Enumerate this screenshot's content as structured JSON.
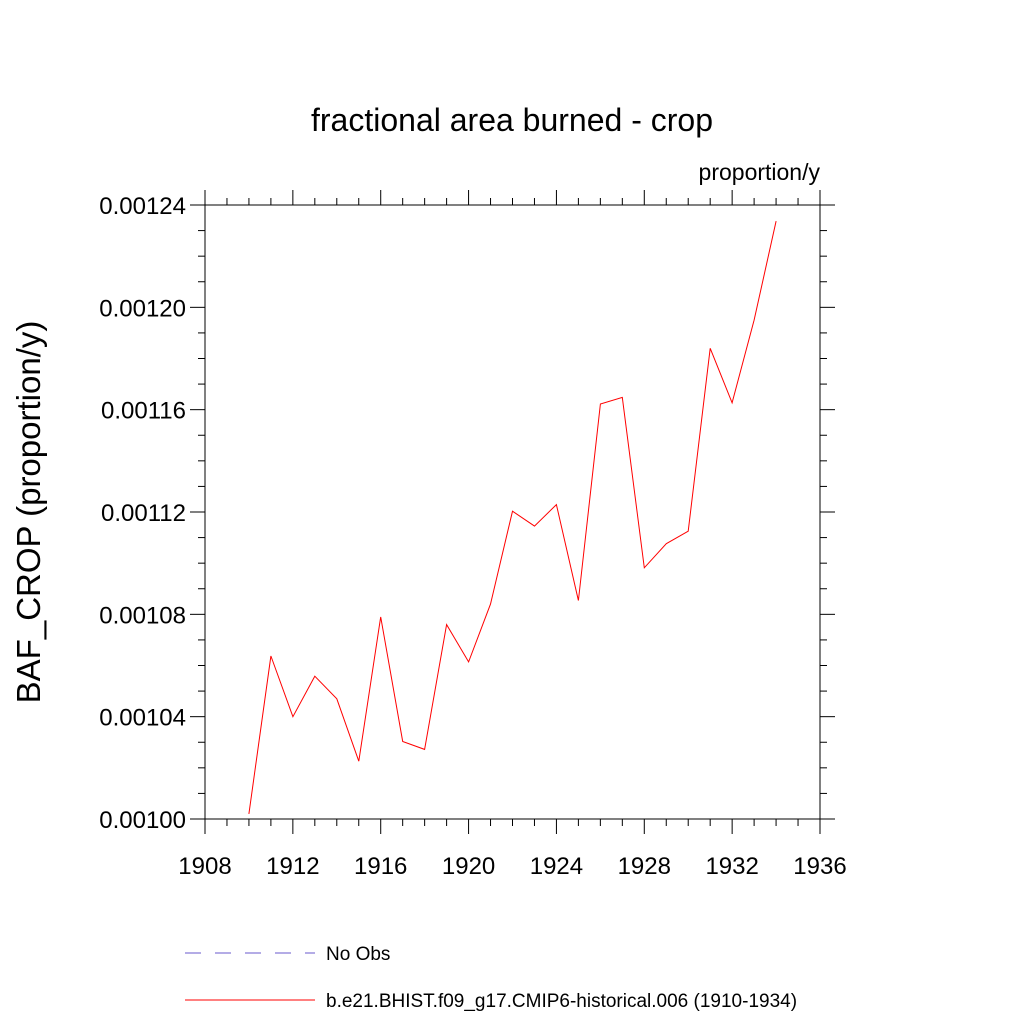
{
  "chart_data": {
    "type": "line",
    "title": "fractional area burned - crop",
    "units": "proportion/y",
    "xlabel": "",
    "ylabel": "BAF_CROP  (proportion/y)",
    "xlim": [
      1908,
      1936
    ],
    "ylim": [
      0.001,
      0.00124
    ],
    "x_ticks": [
      "1908",
      "1912",
      "1916",
      "1920",
      "1924",
      "1928",
      "1932",
      "1936"
    ],
    "y_ticks": [
      "0.00100",
      "0.00104",
      "0.00108",
      "0.00112",
      "0.00116",
      "0.00120",
      "0.00124"
    ],
    "grid": false,
    "legend_position": "bottom",
    "series": [
      {
        "name": "b.e21.BHIST.f09_g17.CMIP6-historical.006 (1910-1934)",
        "color": "#ff0000",
        "x": [
          1910,
          1911,
          1912,
          1913,
          1914,
          1915,
          1916,
          1917,
          1918,
          1919,
          1920,
          1921,
          1922,
          1923,
          1924,
          1925,
          1926,
          1927,
          1928,
          1929,
          1930,
          1931,
          1932,
          1933,
          1934
        ],
        "y": [
          0.001002,
          0.0010637,
          0.00104,
          0.0010558,
          0.001047,
          0.0010226,
          0.001079,
          0.0010303,
          0.0010272,
          0.001076,
          0.0010614,
          0.001084,
          0.0011203,
          0.0011145,
          0.0011229,
          0.0010854,
          0.0011622,
          0.0011648,
          0.0010982,
          0.0011076,
          0.0011125,
          0.001184,
          0.0011627,
          0.001195,
          0.0012337
        ]
      }
    ],
    "legend": [
      {
        "label": "No Obs",
        "color": "#6a5acd",
        "dash": "dashed"
      },
      {
        "label": "b.e21.BHIST.f09_g17.CMIP6-historical.006 (1910-1934)",
        "color": "#ff0000",
        "dash": "solid"
      }
    ]
  }
}
